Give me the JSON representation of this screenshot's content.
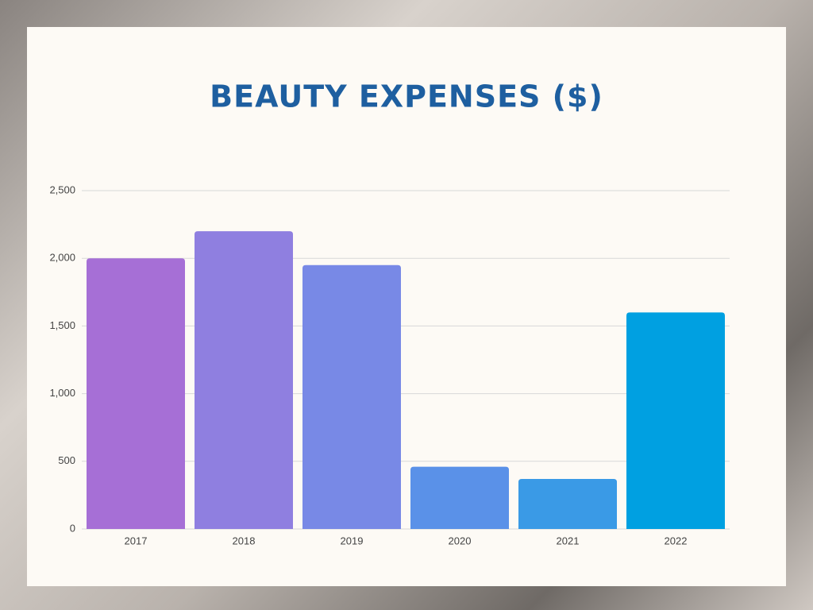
{
  "chart_data": {
    "type": "bar",
    "title": "BEAUTY EXPENSES ($)",
    "categories": [
      "2017",
      "2018",
      "2019",
      "2020",
      "2021",
      "2022"
    ],
    "values": [
      2000,
      2200,
      1950,
      460,
      370,
      1600
    ],
    "colors": [
      "#a66fd6",
      "#8f7fe0",
      "#7889e6",
      "#5a91e8",
      "#3a9ae6",
      "#00a0e1"
    ],
    "ylim": [
      0,
      2500
    ],
    "yticks": [
      0,
      500,
      {
        "value": 1000,
        "label": "1,000"
      },
      {
        "value": 1500,
        "label": "1,500"
      },
      {
        "value": 2000,
        "label": "2,000"
      },
      {
        "value": 2500,
        "label": "2,500"
      }
    ],
    "grid": true
  }
}
